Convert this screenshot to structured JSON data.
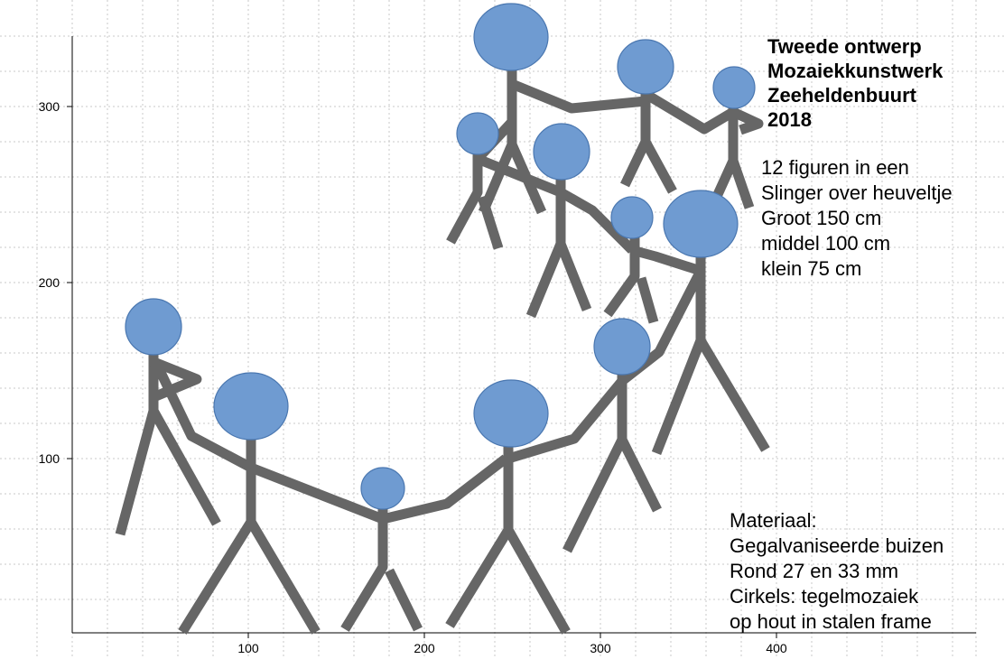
{
  "axes": {
    "x_ticks": [
      "100",
      "200",
      "300",
      "400"
    ],
    "y_ticks": [
      "300",
      "200",
      "100"
    ]
  },
  "title": {
    "line1": "Tweede ontwerp",
    "line2": "Mozaiekkunstwerk",
    "line3": "Zeeheldenbuurt",
    "line4": "2018"
  },
  "info": {
    "line1": "12 figuren in een",
    "line2": "Slinger over heuveltje",
    "line3": "Groot 150 cm",
    "line4": "middel 100 cm",
    "line5": "klein 75 cm"
  },
  "material": {
    "line1": "Materiaal:",
    "line2": "Gegalvaniseerde buizen",
    "line3": "Rond 27 en 33 mm",
    "line4": "Cirkels: tegelmozaiek",
    "line5": "op hout in stalen frame"
  },
  "colors": {
    "head_fill": "#6f9bd1",
    "head_stroke": "#4a77b0",
    "stick": "#666666",
    "grid": "#c8c8c8"
  }
}
